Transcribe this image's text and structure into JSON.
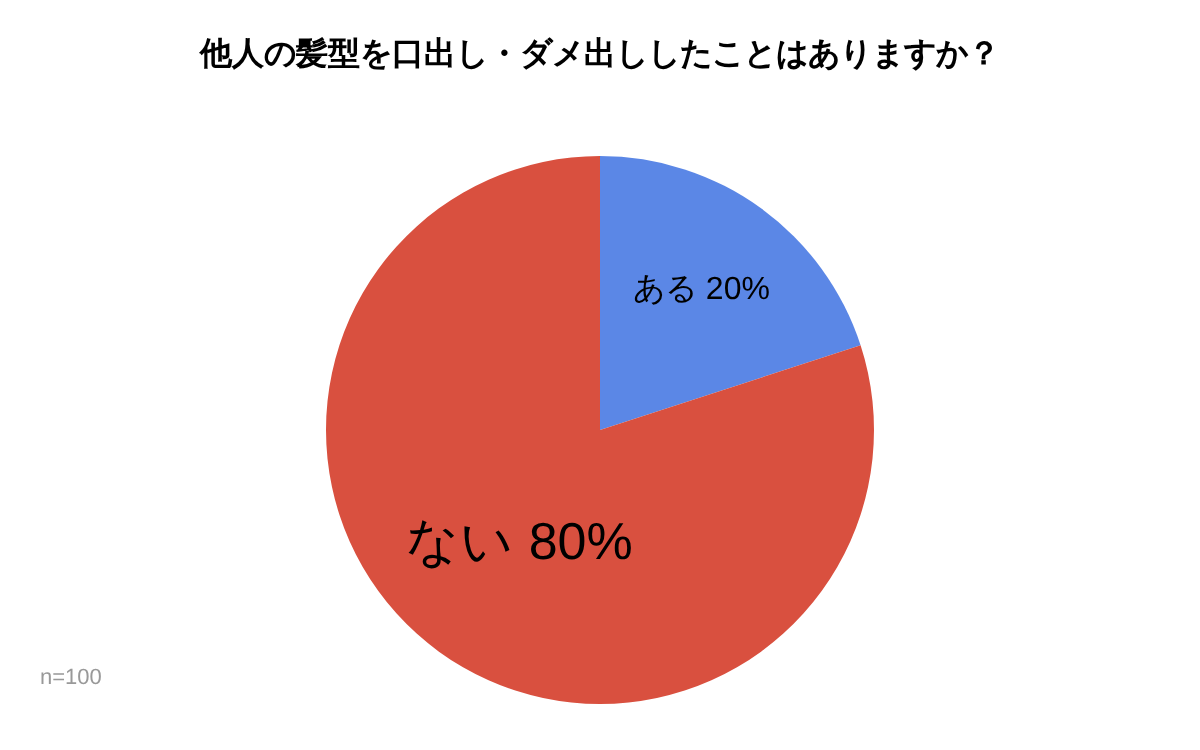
{
  "chart_data": {
    "type": "pie",
    "title": "他人の髪型を口出し・ダメ出ししたことはありますか？",
    "categories": [
      "ある",
      "ない"
    ],
    "values": [
      20,
      80
    ],
    "value_labels": [
      "20%",
      "80%"
    ],
    "colors": [
      "#5b87e6",
      "#d9503f"
    ],
    "legend": false,
    "annotations": [
      "n=100"
    ]
  }
}
